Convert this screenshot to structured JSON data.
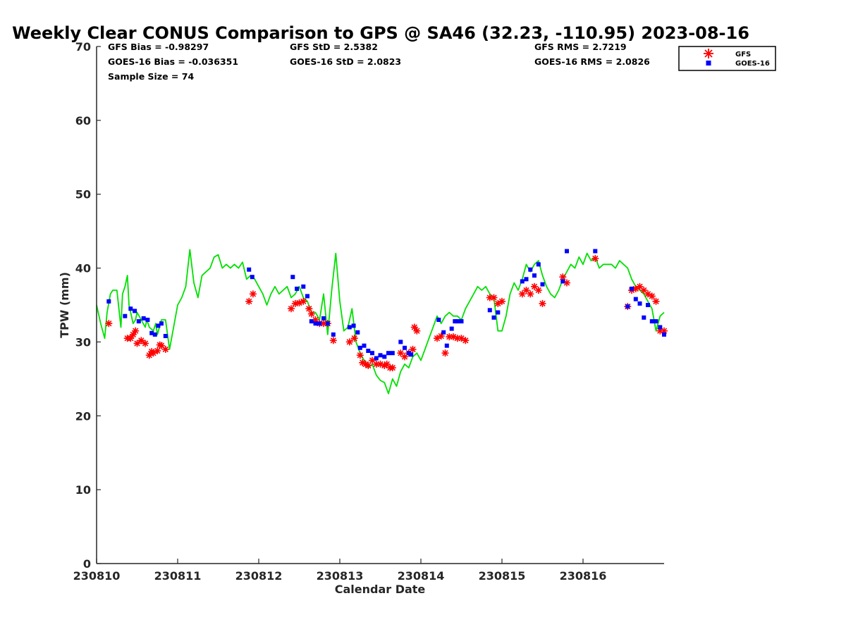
{
  "chart_data": {
    "type": "scatter",
    "title": "Weekly Clear CONUS Comparison to GPS @ SA46 (32.23, -110.95) 2023-08-16",
    "xlabel": "Calendar Date",
    "ylabel": "TPW (mm)",
    "xlim": [
      0,
      7
    ],
    "ylim": [
      0,
      70
    ],
    "x_ticks": [
      0,
      1,
      2,
      3,
      4,
      5,
      6
    ],
    "x_tick_labels": [
      "230810",
      "230811",
      "230812",
      "230813",
      "230814",
      "230815",
      "230816"
    ],
    "y_ticks": [
      0,
      10,
      20,
      30,
      40,
      50,
      60,
      70
    ],
    "y_tick_labels": [
      "0",
      "10",
      "20",
      "30",
      "40",
      "50",
      "60",
      "70"
    ],
    "grid": false,
    "legend_position": "top-right",
    "stats": {
      "gfs_bias": "GFS Bias = -0.98297",
      "gfs_std": "GFS StD = 2.5382",
      "gfs_rms": "GFS RMS = 2.7219",
      "goes_bias": "GOES-16 Bias = -0.036351",
      "goes_std": "GOES-16 StD = 2.0823",
      "goes_rms": "GOES-16 RMS = 2.0826",
      "sample_size": "Sample Size = 74"
    },
    "legend": {
      "gfs_label": "GFS",
      "goes_label": "GOES-16"
    },
    "colors": {
      "gps": "#00e000",
      "gfs": "#ff0000",
      "goes": "#0000ff",
      "axis": "#262626"
    },
    "series": [
      {
        "name": "",
        "role": "gps",
        "kind": "line",
        "x": [
          0.0,
          0.05,
          0.1,
          0.13,
          0.17,
          0.2,
          0.25,
          0.3,
          0.32,
          0.35,
          0.38,
          0.4,
          0.45,
          0.48,
          0.5,
          0.55,
          0.6,
          0.62,
          0.65,
          0.7,
          0.73,
          0.75,
          0.8,
          0.85,
          0.9,
          1.0,
          1.05,
          1.1,
          1.15,
          1.2,
          1.25,
          1.3,
          1.35,
          1.4,
          1.45,
          1.5,
          1.55,
          1.6,
          1.65,
          1.7,
          1.75,
          1.8,
          1.85,
          1.9,
          1.95,
          2.0,
          2.05,
          2.1,
          2.15,
          2.2,
          2.25,
          2.3,
          2.35,
          2.4,
          2.45,
          2.5,
          2.55,
          2.6,
          2.65,
          2.7,
          2.75,
          2.8,
          2.85,
          2.9,
          2.95,
          3.0,
          3.05,
          3.1,
          3.15,
          3.2,
          3.25,
          3.3,
          3.35,
          3.4,
          3.45,
          3.5,
          3.55,
          3.6,
          3.65,
          3.7,
          3.75,
          3.8,
          3.85,
          3.9,
          3.95,
          4.0,
          4.05,
          4.1,
          4.15,
          4.2,
          4.25,
          4.3,
          4.35,
          4.4,
          4.45,
          4.5,
          4.55,
          4.6,
          4.65,
          4.7,
          4.75,
          4.8,
          4.85,
          4.9,
          4.95,
          5.0,
          5.05,
          5.1,
          5.15,
          5.2,
          5.25,
          5.3,
          5.35,
          5.4,
          5.45,
          5.5,
          5.55,
          5.6,
          5.65,
          5.7,
          5.75,
          5.8,
          5.85,
          5.9,
          5.95,
          6.0,
          6.05,
          6.1,
          6.15,
          6.2,
          6.25,
          6.3,
          6.35,
          6.4,
          6.45,
          6.5,
          6.55,
          6.6,
          6.65,
          6.7,
          6.75,
          6.8,
          6.85,
          6.9,
          6.95,
          7.0
        ],
        "y": [
          35.0,
          32.5,
          30.5,
          34.0,
          36.5,
          37.0,
          37.0,
          32.0,
          36.5,
          37.5,
          39.0,
          35.0,
          32.5,
          33.0,
          34.0,
          33.0,
          32.0,
          33.0,
          32.0,
          31.5,
          32.5,
          31.0,
          33.0,
          33.0,
          29.0,
          35.0,
          36.0,
          37.5,
          42.5,
          38.0,
          36.0,
          39.0,
          39.5,
          40.0,
          41.5,
          41.8,
          40.0,
          40.5,
          40.0,
          40.5,
          40.0,
          40.8,
          38.5,
          39.0,
          38.5,
          37.5,
          36.5,
          35.0,
          36.5,
          37.5,
          36.5,
          37.0,
          37.5,
          36.0,
          36.5,
          37.5,
          36.0,
          35.5,
          34.0,
          34.0,
          33.0,
          36.5,
          31.0,
          37.0,
          42.0,
          35.5,
          31.5,
          32.0,
          34.5,
          30.0,
          28.5,
          27.5,
          26.5,
          27.0,
          25.5,
          24.8,
          24.5,
          23.0,
          25.0,
          24.0,
          26.0,
          27.0,
          26.5,
          28.0,
          28.5,
          27.5,
          29.0,
          30.5,
          32.0,
          33.5,
          32.5,
          33.5,
          34.0,
          33.5,
          33.5,
          33.0,
          34.5,
          35.5,
          36.5,
          37.5,
          37.0,
          37.5,
          36.5,
          36.0,
          31.5,
          31.5,
          33.5,
          36.5,
          38.0,
          37.0,
          38.5,
          40.5,
          39.5,
          40.5,
          41.0,
          39.0,
          37.5,
          36.5,
          36.0,
          37.0,
          38.5,
          39.5,
          40.5,
          40.0,
          41.5,
          40.5,
          42.0,
          41.0,
          41.5,
          40.0,
          40.5,
          40.5,
          40.5,
          40.0,
          41.0,
          40.5,
          40.0,
          38.5,
          37.5,
          37.0,
          36.5,
          35.5,
          34.5,
          31.5,
          33.5,
          34.0
        ]
      },
      {
        "name": "GFS",
        "role": "gfs",
        "kind": "asterisk",
        "x": [
          0.15,
          0.38,
          0.42,
          0.45,
          0.48,
          0.5,
          0.55,
          0.6,
          0.65,
          0.68,
          0.7,
          0.75,
          0.78,
          0.8,
          0.85,
          1.88,
          1.93,
          2.4,
          2.45,
          2.5,
          2.55,
          2.62,
          2.65,
          2.7,
          2.75,
          2.8,
          2.85,
          2.92,
          3.12,
          3.18,
          3.25,
          3.28,
          3.32,
          3.35,
          3.4,
          3.45,
          3.5,
          3.55,
          3.58,
          3.62,
          3.65,
          3.75,
          3.8,
          3.85,
          3.9,
          3.92,
          3.95,
          4.2,
          4.25,
          4.3,
          4.35,
          4.4,
          4.45,
          4.5,
          4.55,
          4.85,
          4.9,
          4.95,
          5.0,
          5.25,
          5.3,
          5.35,
          5.4,
          5.45,
          5.5,
          5.75,
          5.8,
          6.15,
          6.55,
          6.6,
          6.65,
          6.7,
          6.75,
          6.8,
          6.85,
          6.9,
          6.95,
          7.0
        ],
        "y": [
          32.5,
          30.5,
          30.5,
          31.0,
          31.5,
          29.8,
          30.2,
          29.8,
          28.2,
          28.7,
          28.5,
          28.8,
          29.6,
          29.5,
          29.0,
          35.5,
          36.5,
          34.5,
          35.2,
          35.3,
          35.5,
          34.5,
          33.8,
          33.0,
          32.5,
          32.5,
          32.5,
          30.2,
          30.0,
          30.5,
          28.2,
          27.2,
          27.0,
          26.8,
          27.5,
          27.0,
          27.0,
          26.8,
          27.0,
          26.5,
          26.5,
          28.5,
          28.0,
          28.5,
          29.0,
          32.0,
          31.5,
          30.5,
          30.8,
          28.5,
          30.7,
          30.7,
          30.5,
          30.5,
          30.2,
          36.0,
          36.0,
          35.2,
          35.5,
          36.5,
          37.0,
          36.5,
          37.5,
          37.0,
          35.2,
          38.8,
          38.0,
          41.3,
          34.8,
          37.0,
          37.2,
          37.5,
          37.0,
          36.5,
          36.2,
          35.5,
          31.5,
          31.5
        ]
      },
      {
        "name": "GOES-16",
        "role": "goes",
        "kind": "square",
        "x": [
          0.15,
          0.35,
          0.42,
          0.47,
          0.52,
          0.58,
          0.63,
          0.68,
          0.72,
          0.76,
          0.8,
          0.85,
          1.88,
          1.92,
          2.42,
          2.47,
          2.55,
          2.6,
          2.65,
          2.7,
          2.75,
          2.8,
          2.85,
          2.92,
          3.12,
          3.17,
          3.22,
          3.25,
          3.3,
          3.35,
          3.4,
          3.45,
          3.5,
          3.55,
          3.6,
          3.65,
          3.75,
          3.8,
          3.85,
          3.88,
          4.22,
          4.28,
          4.32,
          4.38,
          4.42,
          4.45,
          4.5,
          4.85,
          4.9,
          4.95,
          5.25,
          5.3,
          5.35,
          5.4,
          5.45,
          5.5,
          5.75,
          5.8,
          6.15,
          6.55,
          6.6,
          6.65,
          6.7,
          6.75,
          6.8,
          6.85,
          6.9,
          6.95,
          7.0
        ],
        "y": [
          35.5,
          33.5,
          34.5,
          34.2,
          32.8,
          33.2,
          33.0,
          31.2,
          31.0,
          32.2,
          32.5,
          30.8,
          39.8,
          38.8,
          38.8,
          37.2,
          37.5,
          36.2,
          32.8,
          32.5,
          32.5,
          33.2,
          32.5,
          31.0,
          32.0,
          32.2,
          31.3,
          29.2,
          29.5,
          28.8,
          28.5,
          27.8,
          28.2,
          28.0,
          28.5,
          28.5,
          30.0,
          29.2,
          28.5,
          28.3,
          33.0,
          31.3,
          29.5,
          31.8,
          32.8,
          32.8,
          32.8,
          34.3,
          33.3,
          34.0,
          38.2,
          38.5,
          39.8,
          39.0,
          40.5,
          37.8,
          38.2,
          42.3,
          42.3,
          34.8,
          37.2,
          35.8,
          35.2,
          33.3,
          35.0,
          32.8,
          32.8,
          32.0,
          31.0
        ]
      }
    ]
  }
}
